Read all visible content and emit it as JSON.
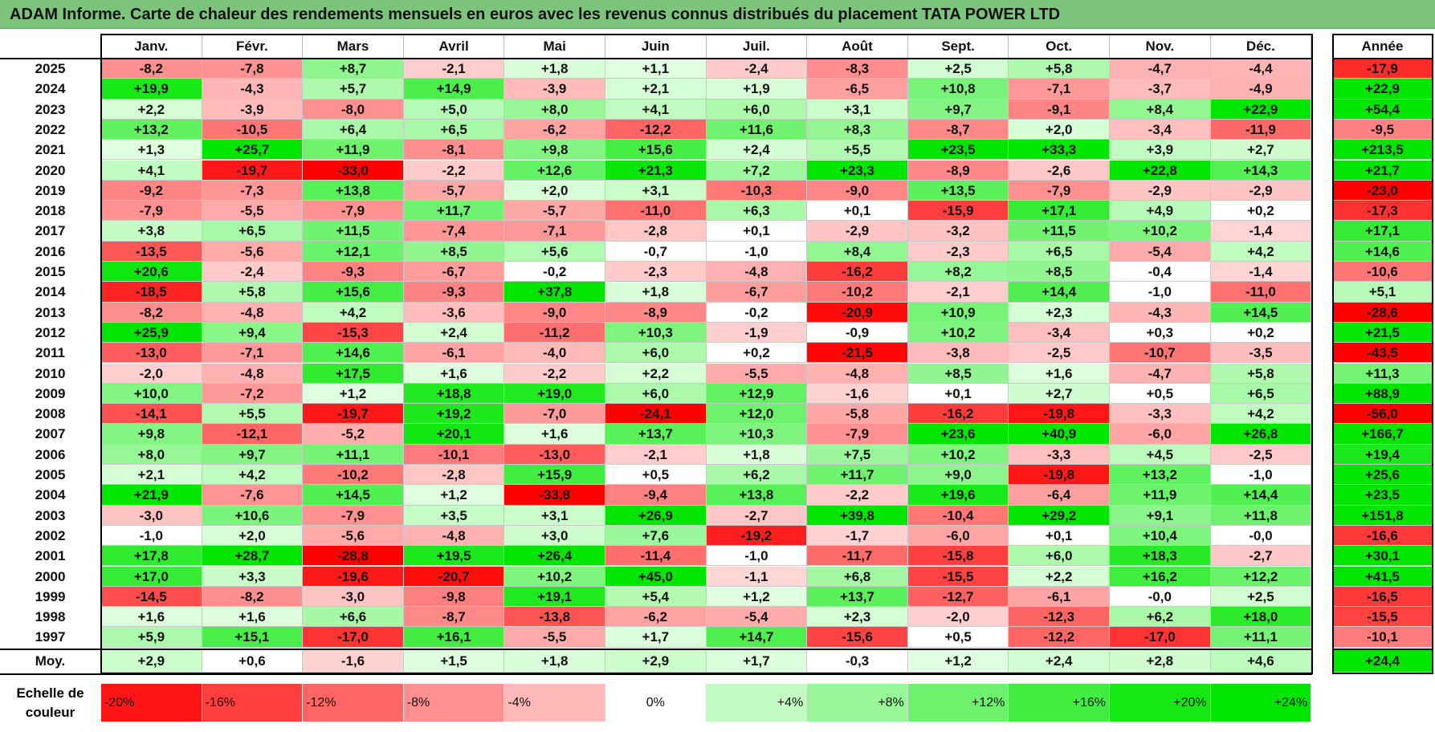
{
  "title": "ADAM Informe. Carte de chaleur des rendements mensuels en euros avec les revenus connus distribués du placement TATA POWER LTD",
  "chart_data": {
    "type": "heatmap",
    "title": "ADAM Informe. Carte de chaleur des rendements mensuels en euros avec les revenus connus distribués du placement TATA POWER LTD",
    "months": [
      "Janv.",
      "Févr.",
      "Mars",
      "Avril",
      "Mai",
      "Juin",
      "Juil.",
      "Août",
      "Sept.",
      "Oct.",
      "Nov.",
      "Déc."
    ],
    "year_header": "Année",
    "rows": [
      {
        "year": "2025",
        "values": [
          "-8,2",
          "-7,8",
          "+8,7",
          "-2,1",
          "+1,8",
          "+1,1",
          "-2,4",
          "-8,3",
          "+2,5",
          "+5,8",
          "-4,7",
          "-4,4"
        ],
        "annual": "-17,9"
      },
      {
        "year": "2024",
        "values": [
          "+19,9",
          "-4,3",
          "+5,7",
          "+14,9",
          "-3,9",
          "+2,1",
          "+1,9",
          "-6,5",
          "+10,8",
          "-7,1",
          "-3,7",
          "-4,9"
        ],
        "annual": "+22,9"
      },
      {
        "year": "2023",
        "values": [
          "+2,2",
          "-3,9",
          "-8,0",
          "+5,0",
          "+8,0",
          "+4,1",
          "+6,0",
          "+3,1",
          "+9,7",
          "-9,1",
          "+8,4",
          "+22,9"
        ],
        "annual": "+54,4"
      },
      {
        "year": "2022",
        "values": [
          "+13,2",
          "-10,5",
          "+6,4",
          "+6,5",
          "-6,2",
          "-12,2",
          "+11,6",
          "+8,3",
          "-8,7",
          "+2,0",
          "-3,4",
          "-11,9"
        ],
        "annual": "-9,5"
      },
      {
        "year": "2021",
        "values": [
          "+1,3",
          "+25,7",
          "+11,9",
          "-8,1",
          "+9,8",
          "+15,6",
          "+2,4",
          "+5,5",
          "+23,5",
          "+33,3",
          "+3,9",
          "+2,7"
        ],
        "annual": "+213,5"
      },
      {
        "year": "2020",
        "values": [
          "+4,1",
          "-19,7",
          "-33,0",
          "-2,2",
          "+12,6",
          "+21,3",
          "+7,2",
          "+23,3",
          "-8,9",
          "-2,6",
          "+22,8",
          "+14,3"
        ],
        "annual": "+21,7"
      },
      {
        "year": "2019",
        "values": [
          "-9,2",
          "-7,3",
          "+13,8",
          "-5,7",
          "+2,0",
          "+3,1",
          "-10,3",
          "-9,0",
          "+13,5",
          "-7,9",
          "-2,9",
          "-2,9"
        ],
        "annual": "-23,0"
      },
      {
        "year": "2018",
        "values": [
          "-7,9",
          "-5,5",
          "-7,9",
          "+11,7",
          "-5,7",
          "-11,0",
          "+6,3",
          "+0,1",
          "-15,9",
          "+17,1",
          "+4,9",
          "+0,2"
        ],
        "annual": "-17,3"
      },
      {
        "year": "2017",
        "values": [
          "+3,8",
          "+6,5",
          "+11,5",
          "-7,4",
          "-7,1",
          "-2,8",
          "+0,1",
          "-2,9",
          "-3,2",
          "+11,5",
          "+10,2",
          "-1,4"
        ],
        "annual": "+17,1"
      },
      {
        "year": "2016",
        "values": [
          "-13,5",
          "-5,6",
          "+12,1",
          "+8,5",
          "+5,6",
          "-0,7",
          "-1,0",
          "+8,4",
          "-2,3",
          "+6,5",
          "-5,4",
          "+4,2"
        ],
        "annual": "+14,6"
      },
      {
        "year": "2015",
        "values": [
          "+20,6",
          "-2,4",
          "-9,3",
          "-6,7",
          "-0,2",
          "-2,3",
          "-4,8",
          "-16,2",
          "+8,2",
          "+8,5",
          "-0,4",
          "-1,4"
        ],
        "annual": "-10,6"
      },
      {
        "year": "2014",
        "values": [
          "-18,5",
          "+5,8",
          "+15,6",
          "-9,3",
          "+37,8",
          "+1,8",
          "-6,7",
          "-10,2",
          "-2,1",
          "+14,4",
          "-1,0",
          "-11,0"
        ],
        "annual": "+5,1"
      },
      {
        "year": "2013",
        "values": [
          "-8,2",
          "-4,8",
          "+4,2",
          "-3,6",
          "-9,0",
          "-8,9",
          "-0,2",
          "-20,9",
          "+10,9",
          "+2,3",
          "-4,3",
          "+14,5"
        ],
        "annual": "-28,6"
      },
      {
        "year": "2012",
        "values": [
          "+25,9",
          "+9,4",
          "-15,3",
          "+2,4",
          "-11,2",
          "+10,3",
          "-1,9",
          "-0,9",
          "+10,2",
          "-3,4",
          "+0,3",
          "+0,2"
        ],
        "annual": "+21,5"
      },
      {
        "year": "2011",
        "values": [
          "-13,0",
          "-7,1",
          "+14,6",
          "-6,1",
          "-4,0",
          "+6,0",
          "+0,2",
          "-21,5",
          "-3,8",
          "-2,5",
          "-10,7",
          "-3,5"
        ],
        "annual": "-43,5"
      },
      {
        "year": "2010",
        "values": [
          "-2,0",
          "-4,8",
          "+17,5",
          "+1,6",
          "-2,2",
          "+2,2",
          "-5,5",
          "-4,8",
          "+8,5",
          "+1,6",
          "-4,7",
          "+5,8"
        ],
        "annual": "+11,3"
      },
      {
        "year": "2009",
        "values": [
          "+10,0",
          "-7,2",
          "+1,2",
          "+18,8",
          "+19,0",
          "+6,0",
          "+12,9",
          "-1,6",
          "+0,1",
          "+2,7",
          "+0,5",
          "+6,5"
        ],
        "annual": "+88,9"
      },
      {
        "year": "2008",
        "values": [
          "-14,1",
          "+5,5",
          "-19,7",
          "+19,2",
          "-7,0",
          "-24,1",
          "+12,0",
          "-5,8",
          "-16,2",
          "-19,8",
          "-3,3",
          "+4,2"
        ],
        "annual": "-56,0"
      },
      {
        "year": "2007",
        "values": [
          "+9,8",
          "-12,1",
          "-5,2",
          "+20,1",
          "+1,6",
          "+13,7",
          "+10,3",
          "-7,9",
          "+23,6",
          "+40,9",
          "-6,0",
          "+26,8"
        ],
        "annual": "+166,7"
      },
      {
        "year": "2006",
        "values": [
          "+8,0",
          "+9,7",
          "+11,1",
          "-10,1",
          "-13,0",
          "-2,1",
          "+1,8",
          "+7,5",
          "+10,2",
          "-3,3",
          "+4,5",
          "-2,5"
        ],
        "annual": "+19,4"
      },
      {
        "year": "2005",
        "values": [
          "+2,1",
          "+4,2",
          "-10,2",
          "-2,8",
          "+15,9",
          "+0,5",
          "+6,2",
          "+11,7",
          "+9,0",
          "-19,8",
          "+13,2",
          "-1,0"
        ],
        "annual": "+25,6"
      },
      {
        "year": "2004",
        "values": [
          "+21,9",
          "-7,6",
          "+14,5",
          "+1,2",
          "-33,8",
          "-9,4",
          "+13,8",
          "-2,2",
          "+19,6",
          "-6,4",
          "+11,9",
          "+14,4"
        ],
        "annual": "+23,5"
      },
      {
        "year": "2003",
        "values": [
          "-3,0",
          "+10,6",
          "-7,9",
          "+3,5",
          "+3,1",
          "+26,9",
          "-2,7",
          "+39,8",
          "-10,4",
          "+29,2",
          "+9,1",
          "+11,8"
        ],
        "annual": "+151,8"
      },
      {
        "year": "2002",
        "values": [
          "-1,0",
          "+2,0",
          "-5,6",
          "-4,8",
          "+3,0",
          "+7,6",
          "-19,2",
          "-1,7",
          "-6,0",
          "+0,1",
          "+10,4",
          "-0,0"
        ],
        "annual": "-16,6"
      },
      {
        "year": "2001",
        "values": [
          "+17,8",
          "+28,7",
          "-28,8",
          "+19,5",
          "+26,4",
          "-11,4",
          "-1,0",
          "-11,7",
          "-15,8",
          "+6,0",
          "+18,3",
          "-2,7"
        ],
        "annual": "+30,1"
      },
      {
        "year": "2000",
        "values": [
          "+17,0",
          "+3,3",
          "-19,6",
          "-20,7",
          "+10,2",
          "+45,0",
          "-1,1",
          "+6,8",
          "-15,5",
          "+2,2",
          "+16,2",
          "+12,2"
        ],
        "annual": "+41,5"
      },
      {
        "year": "1999",
        "values": [
          "-14,5",
          "-8,2",
          "-3,0",
          "-9,8",
          "+19,1",
          "+5,4",
          "+1,2",
          "+13,7",
          "-12,7",
          "-6,1",
          "-0,0",
          "+2,5"
        ],
        "annual": "-16,5"
      },
      {
        "year": "1998",
        "values": [
          "+1,6",
          "+1,6",
          "+6,6",
          "-8,7",
          "-13,8",
          "-6,2",
          "-5,4",
          "+2,3",
          "-2,0",
          "-12,3",
          "+6,2",
          "+18,0"
        ],
        "annual": "-15,5"
      },
      {
        "year": "1997",
        "values": [
          "+5,9",
          "+15,1",
          "-17,0",
          "+16,1",
          "-5,5",
          "+1,7",
          "+14,7",
          "-15,6",
          "+0,5",
          "-12,2",
          "-17,0",
          "+11,1"
        ],
        "annual": "-10,1"
      }
    ],
    "average": {
      "label": "Moy.",
      "values": [
        "+2,9",
        "+0,6",
        "-1,6",
        "+1,5",
        "+1,8",
        "+2,9",
        "+1,7",
        "-0,3",
        "+1,2",
        "+2,4",
        "+2,8",
        "+4,6"
      ],
      "annual": "+24,4"
    },
    "scale": {
      "label": "Echelle de couleur",
      "stops": [
        {
          "label": "-20%",
          "value": -20
        },
        {
          "label": "-16%",
          "value": -16
        },
        {
          "label": "-12%",
          "value": -12
        },
        {
          "label": "-8%",
          "value": -8
        },
        {
          "label": "-4%",
          "value": -4
        },
        {
          "label": "0%",
          "value": 0
        },
        {
          "label": "+4%",
          "value": 4
        },
        {
          "label": "+8%",
          "value": 8
        },
        {
          "label": "+12%",
          "value": 12
        },
        {
          "label": "+16%",
          "value": 16
        },
        {
          "label": "+20%",
          "value": 20
        },
        {
          "label": "+24%",
          "value": 24
        }
      ]
    }
  }
}
